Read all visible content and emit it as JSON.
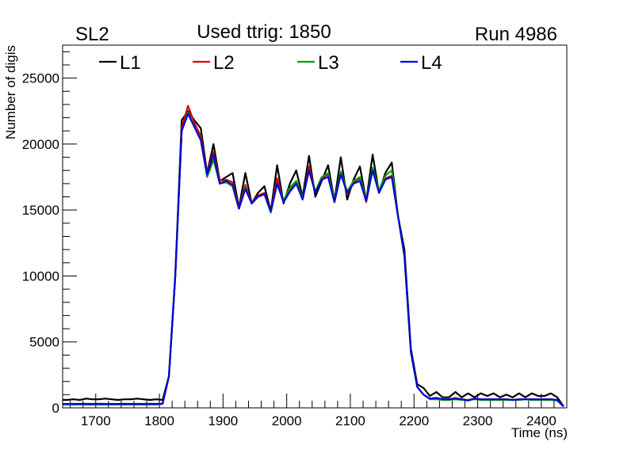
{
  "chart_data": {
    "type": "line",
    "title": "Used ttrig: 1850",
    "top_left_label": "SL2",
    "top_right_label": "Run 4986",
    "xlabel": "Time (ns)",
    "ylabel": "Number of digis",
    "xlim": [
      1648,
      2440
    ],
    "ylim": [
      0,
      27500
    ],
    "x_ticks": [
      1700,
      1800,
      1900,
      2000,
      2100,
      2200,
      2300,
      2400
    ],
    "y_ticks": [
      0,
      5000,
      10000,
      15000,
      20000,
      25000
    ],
    "x_tick_labels": [
      "1700",
      "1800",
      "1900",
      "2000",
      "2100",
      "2200",
      "2300",
      "2400"
    ],
    "y_tick_labels": [
      "0",
      "5000",
      "10000",
      "15000",
      "20000",
      "25000"
    ],
    "grid": false,
    "legend_position": "top",
    "x_start": 1655,
    "x_step": 10,
    "series": [
      {
        "name": "L1",
        "color": "#000000",
        "values": [
          600,
          650,
          600,
          700,
          650,
          650,
          700,
          650,
          600,
          650,
          650,
          700,
          650,
          600,
          650,
          600,
          2400,
          10000,
          21800,
          22500,
          21800,
          21200,
          17800,
          20000,
          17200,
          17500,
          17800,
          15200,
          17800,
          15500,
          16300,
          16800,
          14900,
          18400,
          15500,
          17000,
          18000,
          16000,
          19100,
          16000,
          17200,
          18400,
          15700,
          19000,
          15800,
          17300,
          18300,
          15700,
          19200,
          16300,
          17800,
          18600,
          14500,
          12000,
          4500,
          1800,
          1500,
          900,
          1200,
          800,
          800,
          1200,
          800,
          1100,
          800,
          1100,
          900,
          1100,
          800,
          1000,
          800,
          1100,
          800,
          1100,
          900,
          900,
          1100,
          800,
          100
        ]
      },
      {
        "name": "L2",
        "color": "#dd0000",
        "values": [
          250,
          250,
          260,
          250,
          240,
          250,
          260,
          250,
          250,
          240,
          250,
          260,
          250,
          250,
          260,
          300,
          2400,
          10000,
          21200,
          22900,
          21600,
          20600,
          17800,
          19400,
          17200,
          17300,
          17100,
          15200,
          16900,
          15500,
          16100,
          16300,
          14900,
          17400,
          15600,
          16600,
          17200,
          15800,
          18300,
          16300,
          17400,
          17700,
          15600,
          17900,
          16200,
          17100,
          17400,
          15600,
          18200,
          16300,
          17400,
          17600,
          14500,
          11600,
          4300,
          1600,
          1000,
          700,
          750,
          650,
          650,
          750,
          650,
          600,
          700,
          650,
          650,
          650,
          650,
          650,
          600,
          650,
          650,
          650,
          650,
          650,
          650,
          600,
          100
        ]
      },
      {
        "name": "L3",
        "color": "#00a000",
        "values": [
          250,
          260,
          250,
          250,
          260,
          250,
          250,
          260,
          250,
          250,
          260,
          250,
          250,
          260,
          250,
          300,
          2400,
          10000,
          21000,
          22400,
          21300,
          20300,
          17500,
          18800,
          17000,
          17100,
          16800,
          15100,
          16700,
          15500,
          16000,
          16200,
          14800,
          17000,
          15700,
          16700,
          17200,
          15900,
          18000,
          16400,
          17500,
          17800,
          15700,
          17900,
          16400,
          17200,
          17500,
          15800,
          18200,
          16500,
          17600,
          18000,
          14500,
          11500,
          4200,
          1600,
          1000,
          650,
          650,
          600,
          600,
          650,
          600,
          600,
          650,
          600,
          600,
          600,
          600,
          600,
          600,
          600,
          650,
          600,
          600,
          600,
          600,
          550,
          100
        ]
      },
      {
        "name": "L4",
        "color": "#0000dd",
        "values": [
          300,
          300,
          310,
          300,
          300,
          310,
          300,
          300,
          300,
          310,
          300,
          300,
          300,
          310,
          300,
          320,
          2400,
          10000,
          21000,
          22300,
          21300,
          20300,
          17700,
          19200,
          17000,
          17200,
          16900,
          15100,
          16600,
          15500,
          16000,
          16200,
          14900,
          17000,
          15600,
          16400,
          17000,
          15800,
          18000,
          16300,
          17300,
          17500,
          15600,
          17700,
          16300,
          17000,
          17200,
          15700,
          18000,
          16300,
          17300,
          17500,
          14500,
          11500,
          4300,
          1600,
          1000,
          700,
          750,
          650,
          650,
          700,
          650,
          550,
          700,
          650,
          650,
          650,
          650,
          650,
          600,
          650,
          650,
          650,
          650,
          650,
          650,
          600,
          100
        ]
      }
    ]
  }
}
